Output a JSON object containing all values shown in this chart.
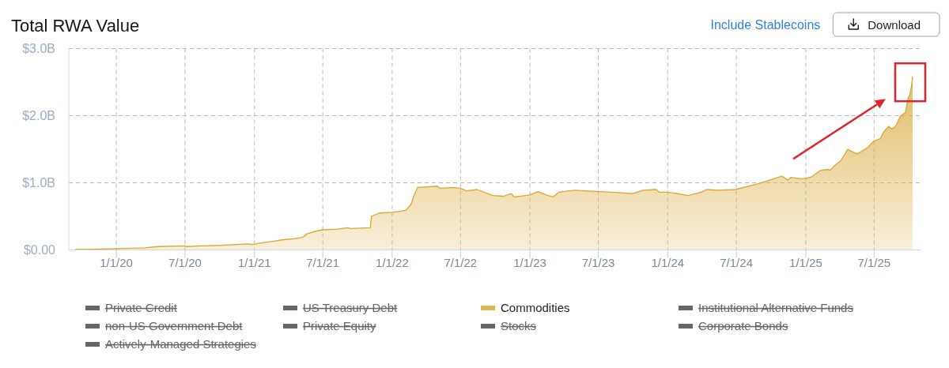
{
  "chart_data": {
    "type": "area",
    "title": "Total RWA Value",
    "annotations": [
      "Include Stablecoins",
      "Download"
    ],
    "x": [
      "2019-09-15",
      "2019-11-01",
      "2020-01-01",
      "2020-03-16",
      "2020-04-20",
      "2020-06-29",
      "2020-07-06",
      "2020-08-10",
      "2020-10-05",
      "2020-12-14",
      "2020-12-28",
      "2021-01-25",
      "2021-02-22",
      "2021-03-15",
      "2021-04-19",
      "2021-05-10",
      "2021-05-20",
      "2021-06-14",
      "2021-07-01",
      "2021-08-09",
      "2021-09-05",
      "2021-09-12",
      "2021-11-04",
      "2021-11-07",
      "2021-11-28",
      "2022-01-02",
      "2022-02-06",
      "2022-02-20",
      "2022-02-27",
      "2022-03-09",
      "2022-04-03",
      "2022-04-30",
      "2022-05-08",
      "2022-06-12",
      "2022-06-29",
      "2022-07-17",
      "2022-08-14",
      "2022-09-25",
      "2022-10-23",
      "2022-11-13",
      "2022-11-20",
      "2023-01-01",
      "2023-01-22",
      "2023-02-18",
      "2023-03-04",
      "2023-03-18",
      "2023-04-29",
      "2023-07-01",
      "2023-08-05",
      "2023-09-30",
      "2023-10-28",
      "2023-12-02",
      "2023-12-09",
      "2023-12-31",
      "2024-01-27",
      "2024-02-24",
      "2024-03-30",
      "2024-04-13",
      "2024-05-11",
      "2024-06-28",
      "2024-08-24",
      "2024-09-27",
      "2024-10-29",
      "2024-11-15",
      "2024-11-22",
      "2024-12-20",
      "2025-01-03",
      "2025-01-17",
      "2025-02-07",
      "2025-02-28",
      "2025-03-07",
      "2025-03-21",
      "2025-04-04",
      "2025-04-22",
      "2025-05-02",
      "2025-05-16",
      "2025-06-13",
      "2025-06-30",
      "2025-07-18",
      "2025-07-25",
      "2025-08-08",
      "2025-08-18",
      "2025-08-29",
      "2025-09-08",
      "2025-09-22",
      "2025-09-29",
      "2025-10-04",
      "2025-10-08",
      "2025-10-11"
    ],
    "series": [
      {
        "name": "Private Credit",
        "color": "#666666",
        "values": [
          null,
          null,
          null,
          null,
          null,
          null,
          null,
          null,
          null,
          null,
          null,
          null,
          null,
          null,
          null,
          null,
          null,
          null,
          null,
          null,
          null,
          null,
          null,
          null,
          null,
          null,
          null,
          null,
          null,
          null,
          null,
          null,
          null,
          null,
          null,
          null,
          null,
          null,
          null,
          null,
          null,
          null,
          null,
          null,
          null,
          null,
          null,
          null,
          null,
          null,
          null,
          null,
          null,
          null,
          null,
          null,
          null,
          null,
          null,
          null,
          null,
          null,
          null,
          null,
          null,
          null,
          null,
          null,
          null,
          null,
          null,
          null,
          null,
          null,
          null,
          null,
          null,
          null,
          null,
          null,
          null,
          null,
          null,
          null,
          null,
          null,
          null,
          null,
          null
        ]
      },
      {
        "name": "US Treasury Debt",
        "color": "#666666",
        "values": [
          null,
          null,
          null,
          null,
          null,
          null,
          null,
          null,
          null,
          null,
          null,
          null,
          null,
          null,
          null,
          null,
          null,
          null,
          null,
          null,
          null,
          null,
          null,
          null,
          null,
          null,
          null,
          null,
          null,
          null,
          null,
          null,
          null,
          null,
          null,
          null,
          null,
          null,
          null,
          null,
          null,
          null,
          null,
          null,
          null,
          null,
          null,
          null,
          null,
          null,
          null,
          null,
          null,
          null,
          null,
          null,
          null,
          null,
          null,
          null,
          null,
          null,
          null,
          null,
          null,
          null,
          null,
          null,
          null,
          null,
          null,
          null,
          null,
          null,
          null,
          null,
          null,
          null,
          null,
          null,
          null,
          null,
          null,
          null,
          null,
          null,
          null,
          null,
          null
        ]
      },
      {
        "name": "Commodities",
        "color": "#d9a633",
        "values": [
          0.01,
          0.01,
          0.02,
          0.03,
          0.05,
          0.06,
          0.05,
          0.06,
          0.07,
          0.09,
          0.08,
          0.11,
          0.13,
          0.15,
          0.17,
          0.19,
          0.24,
          0.28,
          0.3,
          0.31,
          0.33,
          0.32,
          0.33,
          0.5,
          0.55,
          0.56,
          0.59,
          0.68,
          0.8,
          0.93,
          0.94,
          0.95,
          0.92,
          0.93,
          0.92,
          0.88,
          0.9,
          0.81,
          0.8,
          0.84,
          0.79,
          0.82,
          0.87,
          0.81,
          0.79,
          0.86,
          0.89,
          0.87,
          0.86,
          0.84,
          0.89,
          0.9,
          0.86,
          0.86,
          0.84,
          0.81,
          0.86,
          0.9,
          0.89,
          0.9,
          0.98,
          1.04,
          1.1,
          1.04,
          1.08,
          1.06,
          1.07,
          1.09,
          1.18,
          1.2,
          1.19,
          1.27,
          1.33,
          1.5,
          1.47,
          1.43,
          1.52,
          1.62,
          1.66,
          1.75,
          1.84,
          1.8,
          1.86,
          1.99,
          2.05,
          2.26,
          2.32,
          2.44,
          2.58
        ]
      },
      {
        "name": "Institutional Alternative Funds",
        "color": "#666666",
        "values": [
          null,
          null,
          null,
          null,
          null,
          null,
          null,
          null,
          null,
          null,
          null,
          null,
          null,
          null,
          null,
          null,
          null,
          null,
          null,
          null,
          null,
          null,
          null,
          null,
          null,
          null,
          null,
          null,
          null,
          null,
          null,
          null,
          null,
          null,
          null,
          null,
          null,
          null,
          null,
          null,
          null,
          null,
          null,
          null,
          null,
          null,
          null,
          null,
          null,
          null,
          null,
          null,
          null,
          null,
          null,
          null,
          null,
          null,
          null,
          null,
          null,
          null,
          null,
          null,
          null,
          null,
          null,
          null,
          null,
          null,
          null,
          null,
          null,
          null,
          null,
          null,
          null,
          null,
          null,
          null,
          null,
          null,
          null,
          null,
          null,
          null,
          null,
          null,
          null
        ]
      },
      {
        "name": "non-US Government Debt",
        "color": "#666666",
        "values": [
          null,
          null,
          null,
          null,
          null,
          null,
          null,
          null,
          null,
          null,
          null,
          null,
          null,
          null,
          null,
          null,
          null,
          null,
          null,
          null,
          null,
          null,
          null,
          null,
          null,
          null,
          null,
          null,
          null,
          null,
          null,
          null,
          null,
          null,
          null,
          null,
          null,
          null,
          null,
          null,
          null,
          null,
          null,
          null,
          null,
          null,
          null,
          null,
          null,
          null,
          null,
          null,
          null,
          null,
          null,
          null,
          null,
          null,
          null,
          null,
          null,
          null,
          null,
          null,
          null,
          null,
          null,
          null,
          null,
          null,
          null,
          null,
          null,
          null,
          null,
          null,
          null,
          null,
          null,
          null,
          null,
          null,
          null,
          null,
          null,
          null,
          null,
          null,
          null
        ]
      },
      {
        "name": "Private Equity",
        "color": "#666666",
        "values": [
          null,
          null,
          null,
          null,
          null,
          null,
          null,
          null,
          null,
          null,
          null,
          null,
          null,
          null,
          null,
          null,
          null,
          null,
          null,
          null,
          null,
          null,
          null,
          null,
          null,
          null,
          null,
          null,
          null,
          null,
          null,
          null,
          null,
          null,
          null,
          null,
          null,
          null,
          null,
          null,
          null,
          null,
          null,
          null,
          null,
          null,
          null,
          null,
          null,
          null,
          null,
          null,
          null,
          null,
          null,
          null,
          null,
          null,
          null,
          null,
          null,
          null,
          null,
          null,
          null,
          null,
          null,
          null,
          null,
          null,
          null,
          null,
          null,
          null,
          null,
          null,
          null,
          null,
          null,
          null,
          null,
          null,
          null,
          null,
          null,
          null,
          null,
          null,
          null
        ]
      },
      {
        "name": "Stocks",
        "color": "#666666",
        "values": [
          null,
          null,
          null,
          null,
          null,
          null,
          null,
          null,
          null,
          null,
          null,
          null,
          null,
          null,
          null,
          null,
          null,
          null,
          null,
          null,
          null,
          null,
          null,
          null,
          null,
          null,
          null,
          null,
          null,
          null,
          null,
          null,
          null,
          null,
          null,
          null,
          null,
          null,
          null,
          null,
          null,
          null,
          null,
          null,
          null,
          null,
          null,
          null,
          null,
          null,
          null,
          null,
          null,
          null,
          null,
          null,
          null,
          null,
          null,
          null,
          null,
          null,
          null,
          null,
          null,
          null,
          null,
          null,
          null,
          null,
          null,
          null,
          null,
          null,
          null,
          null,
          null,
          null,
          null,
          null,
          null,
          null,
          null,
          null,
          null,
          null,
          null,
          null,
          null
        ]
      },
      {
        "name": "Corporate Bonds",
        "color": "#666666",
        "values": [
          null,
          null,
          null,
          null,
          null,
          null,
          null,
          null,
          null,
          null,
          null,
          null,
          null,
          null,
          null,
          null,
          null,
          null,
          null,
          null,
          null,
          null,
          null,
          null,
          null,
          null,
          null,
          null,
          null,
          null,
          null,
          null,
          null,
          null,
          null,
          null,
          null,
          null,
          null,
          null,
          null,
          null,
          null,
          null,
          null,
          null,
          null,
          null,
          null,
          null,
          null,
          null,
          null,
          null,
          null,
          null,
          null,
          null,
          null,
          null,
          null,
          null,
          null,
          null,
          null,
          null,
          null,
          null,
          null,
          null,
          null,
          null,
          null,
          null,
          null,
          null,
          null,
          null,
          null,
          null,
          null,
          null,
          null,
          null,
          null,
          null,
          null,
          null,
          null
        ]
      },
      {
        "name": "Actively-Managed Strategies",
        "color": "#666666",
        "values": [
          null,
          null,
          null,
          null,
          null,
          null,
          null,
          null,
          null,
          null,
          null,
          null,
          null,
          null,
          null,
          null,
          null,
          null,
          null,
          null,
          null,
          null,
          null,
          null,
          null,
          null,
          null,
          null,
          null,
          null,
          null,
          null,
          null,
          null,
          null,
          null,
          null,
          null,
          null,
          null,
          null,
          null,
          null,
          null,
          null,
          null,
          null,
          null,
          null,
          null,
          null,
          null,
          null,
          null,
          null,
          null,
          null,
          null,
          null,
          null,
          null,
          null,
          null,
          null,
          null,
          null,
          null,
          null,
          null,
          null,
          null,
          null,
          null,
          null,
          null,
          null,
          null,
          null,
          null,
          null,
          null,
          null,
          null,
          null,
          null,
          null,
          null,
          null,
          null
        ]
      }
    ],
    "xlim": [
      "2019-08-28",
      "2025-11-01"
    ],
    "xticks": [
      {
        "value": "2020-01-01",
        "label": "1/1/20"
      },
      {
        "value": "2020-07-01",
        "label": "7/1/20"
      },
      {
        "value": "2021-01-01",
        "label": "1/1/21"
      },
      {
        "value": "2021-07-01",
        "label": "7/1/21"
      },
      {
        "value": "2022-01-01",
        "label": "1/1/22"
      },
      {
        "value": "2022-07-01",
        "label": "7/1/22"
      },
      {
        "value": "2023-01-01",
        "label": "1/1/23"
      },
      {
        "value": "2023-07-01",
        "label": "7/1/23"
      },
      {
        "value": "2024-01-01",
        "label": "1/1/24"
      },
      {
        "value": "2024-07-01",
        "label": "7/1/24"
      },
      {
        "value": "2025-01-01",
        "label": "1/1/25"
      },
      {
        "value": "2025-07-01",
        "label": "7/1/25"
      }
    ],
    "ylim": [
      0,
      3
    ],
    "yticks": [
      {
        "value": 0,
        "label": "$0.00"
      },
      {
        "value": 1,
        "label": "$1.0B"
      },
      {
        "value": 2,
        "label": "$2.0B"
      },
      {
        "value": 3,
        "label": "$3.0B"
      }
    ],
    "grid": true,
    "legend": "bottom"
  }
}
